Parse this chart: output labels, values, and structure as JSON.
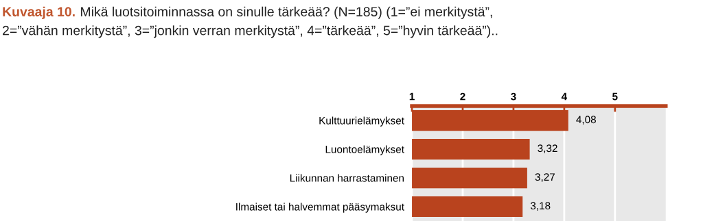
{
  "chart_data": {
    "type": "bar",
    "orientation": "horizontal",
    "title": "Kuvaaja 10.",
    "subtitle": "Mikä luotsitoiminnassa on sinulle tärkeää? (N=185) (1=”ei merkitystä”,\n2=”vähän merkitystä”, 3=”jonkin verran merkitystä”, 4=”tärkeää”, 5=”hyvin tärkeää”)..",
    "categories": [
      "Kulttuurielämykset",
      "Luontoelämykset",
      "Liikunnan harrastaminen",
      "Ilmaiset tai halvemmat pääsymaksut"
    ],
    "values": [
      4.08,
      3.32,
      3.27,
      3.18
    ],
    "value_labels": [
      "4,08",
      "3,32",
      "3,27",
      "3,18"
    ],
    "color": "#b9431e",
    "xlim": [
      1,
      6
    ],
    "xticks": [
      1,
      2,
      3,
      4,
      5
    ],
    "grid": "x"
  }
}
